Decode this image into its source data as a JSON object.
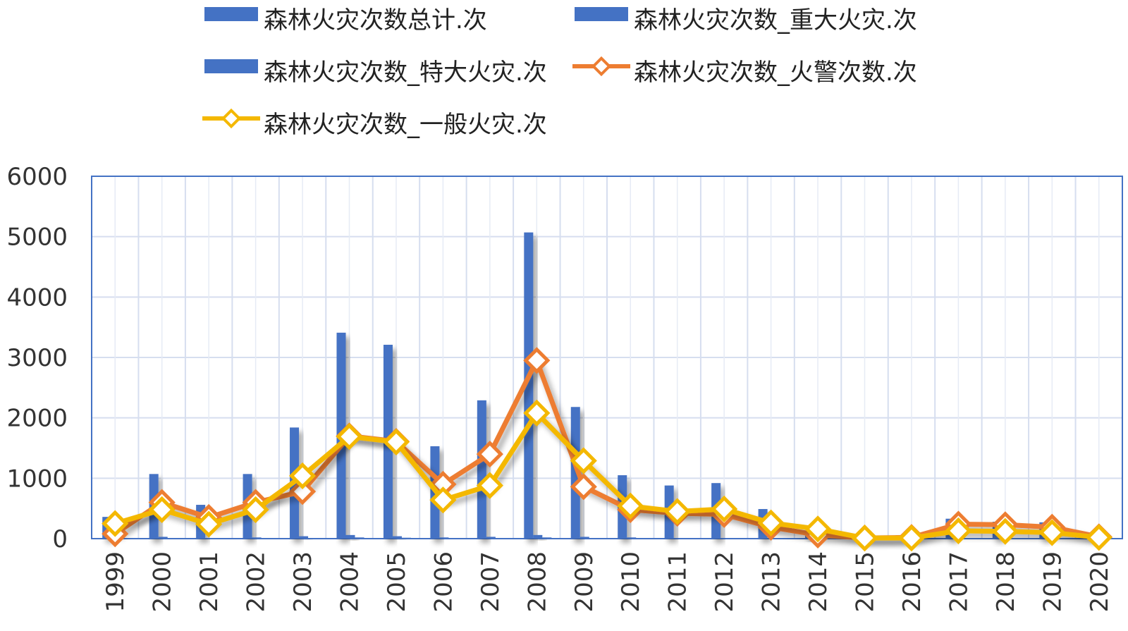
{
  "chart_data": {
    "type": "bar",
    "title": "",
    "xlabel": "",
    "ylabel": "",
    "ylim": [
      0,
      6000
    ],
    "yticks": [
      0,
      1000,
      2000,
      3000,
      4000,
      5000,
      6000
    ],
    "grid": true,
    "legend_position": "top",
    "categories": [
      "1999",
      "2000",
      "2001",
      "2002",
      "2003",
      "2004",
      "2005",
      "2006",
      "2007",
      "2008",
      "2009",
      "2010",
      "2011",
      "2012",
      "2013",
      "2014",
      "2015",
      "2016",
      "2017",
      "2018",
      "2019",
      "2020"
    ],
    "series": [
      {
        "name": "森林火灾次数总计.次",
        "kind": "bar",
        "color": "#4472C4",
        "values": [
          360,
          1070,
          560,
          1070,
          1840,
          3410,
          3210,
          1530,
          2290,
          5070,
          2180,
          1050,
          880,
          920,
          490,
          110,
          10,
          10,
          330,
          280,
          270,
          50
        ]
      },
      {
        "name": "森林火灾次数_重大火灾.次",
        "kind": "bar",
        "color": "#4472C4",
        "values": [
          10,
          30,
          10,
          20,
          40,
          60,
          40,
          20,
          30,
          60,
          30,
          20,
          10,
          10,
          5,
          2,
          1,
          1,
          2,
          1,
          1,
          0
        ]
      },
      {
        "name": "森林火灾次数_特大火灾.次",
        "kind": "bar",
        "color": "#4472C4",
        "values": [
          0,
          5,
          2,
          5,
          10,
          20,
          15,
          5,
          10,
          20,
          10,
          5,
          3,
          3,
          2,
          0,
          0,
          0,
          0,
          0,
          0,
          0
        ]
      },
      {
        "name": "森林火灾次数_火警次数.次",
        "kind": "line",
        "color": "#ED7D31",
        "values": [
          80,
          600,
          350,
          600,
          780,
          1700,
          1610,
          900,
          1400,
          2950,
          860,
          480,
          420,
          400,
          190,
          60,
          10,
          20,
          240,
          230,
          190,
          30
        ]
      },
      {
        "name": "森林火灾次数_一般火灾.次",
        "kind": "line",
        "color": "#F4B800",
        "values": [
          250,
          480,
          240,
          480,
          1040,
          1690,
          1600,
          640,
          880,
          2080,
          1290,
          540,
          450,
          490,
          260,
          160,
          10,
          10,
          130,
          120,
          100,
          20
        ]
      }
    ]
  }
}
